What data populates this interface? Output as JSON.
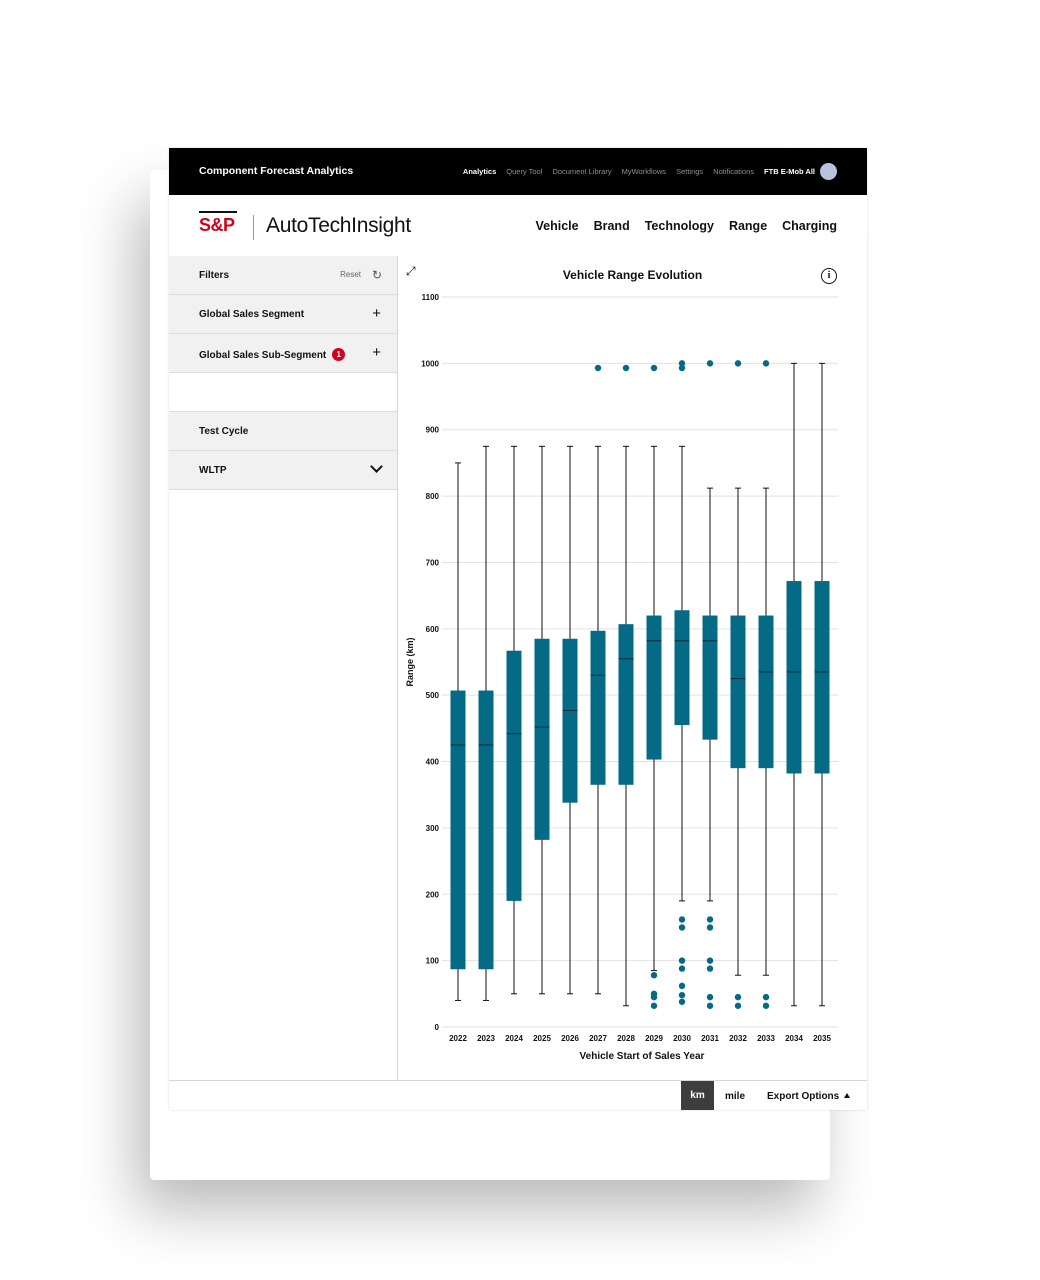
{
  "app": {
    "title": "Component Forecast Analytics",
    "top_nav": [
      "Analytics",
      "Query Tool",
      "Document Library",
      "MyWorkflows",
      "Settings",
      "Notifications"
    ],
    "active_top_nav": "Analytics",
    "user_label": "FTB E-Mob All"
  },
  "brand": {
    "logo_mark": "S&P",
    "logo_name": "AutoTechInsight",
    "main_nav": [
      "Vehicle",
      "Brand",
      "Technology",
      "Range",
      "Charging"
    ]
  },
  "sidebar": {
    "filters_label": "Filters",
    "reset_label": "Reset",
    "items": [
      {
        "label": "Global Sales Segment"
      },
      {
        "label": "Global Sales Sub-Segment",
        "badge": "1"
      }
    ],
    "test_cycle_label": "Test Cycle",
    "test_cycle_value": "WLTP"
  },
  "footer": {
    "unit_km": "km",
    "unit_mile": "mile",
    "selected_unit": "km",
    "export_label": "Export Options"
  },
  "colors": {
    "box": "#046a86",
    "accent": "#d0021b"
  },
  "icons": [
    "expand-icon",
    "info-icon",
    "refresh-icon",
    "plus-icon",
    "chevron-down-icon",
    "caret-up-icon"
  ],
  "chart_data": {
    "type": "boxplot",
    "title": "Vehicle Range Evolution",
    "xlabel": "Vehicle Start of Sales Year",
    "ylabel": "Range (km)",
    "ylim": [
      0,
      1100
    ],
    "yticks": [
      0,
      100,
      200,
      300,
      400,
      500,
      600,
      700,
      800,
      900,
      1000,
      1100
    ],
    "grid": true,
    "categories": [
      "2022",
      "2023",
      "2024",
      "2025",
      "2026",
      "2027",
      "2028",
      "2029",
      "2030",
      "2031",
      "2032",
      "2033",
      "2034",
      "2035"
    ],
    "boxes": [
      {
        "year": "2022",
        "min": 40,
        "q1": 87,
        "median": 425,
        "q3": 507,
        "max": 850,
        "outliers": []
      },
      {
        "year": "2023",
        "min": 40,
        "q1": 87,
        "median": 425,
        "q3": 507,
        "max": 875,
        "outliers": []
      },
      {
        "year": "2024",
        "min": 50,
        "q1": 190,
        "median": 442,
        "q3": 567,
        "max": 875,
        "outliers": []
      },
      {
        "year": "2025",
        "min": 50,
        "q1": 282,
        "median": 452,
        "q3": 585,
        "max": 875,
        "outliers": []
      },
      {
        "year": "2026",
        "min": 50,
        "q1": 338,
        "median": 477,
        "q3": 585,
        "max": 875,
        "outliers": []
      },
      {
        "year": "2027",
        "min": 50,
        "q1": 365,
        "median": 530,
        "q3": 597,
        "max": 875,
        "outliers": [
          993
        ]
      },
      {
        "year": "2028",
        "min": 32,
        "q1": 365,
        "median": 555,
        "q3": 607,
        "max": 875,
        "outliers": [
          993
        ]
      },
      {
        "year": "2029",
        "min": 85,
        "q1": 403,
        "median": 582,
        "q3": 620,
        "max": 875,
        "outliers": [
          993,
          78,
          50,
          45,
          32
        ]
      },
      {
        "year": "2030",
        "min": 190,
        "q1": 455,
        "median": 582,
        "q3": 628,
        "max": 875,
        "outliers": [
          1000,
          993,
          162,
          150,
          100,
          88,
          62,
          48,
          38
        ]
      },
      {
        "year": "2031",
        "min": 190,
        "q1": 433,
        "median": 582,
        "q3": 620,
        "max": 812,
        "outliers": [
          1000,
          162,
          150,
          100,
          88,
          45,
          32
        ]
      },
      {
        "year": "2032",
        "min": 78,
        "q1": 390,
        "median": 525,
        "q3": 620,
        "max": 812,
        "outliers": [
          1000,
          45,
          32
        ]
      },
      {
        "year": "2033",
        "min": 78,
        "q1": 390,
        "median": 535,
        "q3": 620,
        "max": 812,
        "outliers": [
          1000,
          45,
          32
        ]
      },
      {
        "year": "2034",
        "min": 32,
        "q1": 382,
        "median": 535,
        "q3": 672,
        "max": 1000,
        "outliers": []
      },
      {
        "year": "2035",
        "min": 32,
        "q1": 382,
        "median": 535,
        "q3": 672,
        "max": 1000,
        "outliers": []
      }
    ]
  }
}
